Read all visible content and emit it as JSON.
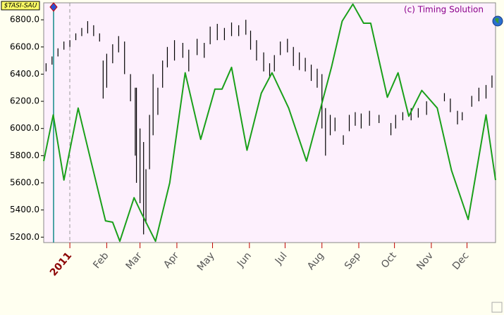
{
  "chart_data": {
    "type": "hilo",
    "title": "$TASI-SAU",
    "annotation": "(c) Timing Solution",
    "xlim": [
      -22,
      358
    ],
    "ylim": [
      5160,
      6925
    ],
    "xticks": [
      {
        "value": 0,
        "label": "2011"
      },
      {
        "value": 31,
        "label": "Feb"
      },
      {
        "value": 59,
        "label": "Mar"
      },
      {
        "value": 90,
        "label": "Apr"
      },
      {
        "value": 120,
        "label": "May"
      },
      {
        "value": 151,
        "label": "Jun"
      },
      {
        "value": 181,
        "label": "Jul"
      },
      {
        "value": 212,
        "label": "Aug"
      },
      {
        "value": 243,
        "label": "Sep"
      },
      {
        "value": 273,
        "label": "Oct"
      },
      {
        "value": 304,
        "label": "Nov"
      },
      {
        "value": 334,
        "label": "Dec"
      }
    ],
    "yticks": [
      {
        "value": 5200,
        "label": "5200.0"
      },
      {
        "value": 5400,
        "label": "5400.0"
      },
      {
        "value": 5600,
        "label": "5600.0"
      },
      {
        "value": 5800,
        "label": "5800.0"
      },
      {
        "value": 6000,
        "label": "6000.0"
      },
      {
        "value": 6200,
        "label": "6200.0"
      },
      {
        "value": 6400,
        "label": "6400.0"
      },
      {
        "value": 6600,
        "label": "6600.0"
      },
      {
        "value": 6800,
        "label": "6800.0"
      }
    ],
    "bars": {
      "color": "#000000",
      "x": [
        -20,
        -15,
        -10,
        -5,
        0,
        5,
        10,
        15,
        20,
        25,
        28,
        31,
        36,
        41,
        46,
        51,
        55,
        56,
        59,
        62,
        64,
        67,
        70,
        74,
        78,
        82,
        88,
        95,
        100,
        107,
        113,
        118,
        124,
        130,
        136,
        142,
        148,
        152,
        157,
        163,
        168,
        172,
        177,
        183,
        188,
        193,
        198,
        203,
        208,
        212,
        215,
        219,
        223,
        230,
        235,
        240,
        245,
        252,
        260,
        270,
        274,
        280,
        287,
        293,
        300,
        315,
        320,
        326,
        330,
        338,
        344,
        350,
        355
      ],
      "high": [
        6480,
        6530,
        6590,
        6640,
        6650,
        6700,
        6740,
        6790,
        6760,
        6700,
        6500,
        6550,
        6620,
        6680,
        6640,
        6400,
        6300,
        6300,
        6000,
        5900,
        5700,
        6100,
        6400,
        6300,
        6500,
        6600,
        6650,
        6630,
        6580,
        6660,
        6630,
        6750,
        6770,
        6740,
        6780,
        6760,
        6800,
        6720,
        6650,
        6560,
        6480,
        6540,
        6640,
        6660,
        6600,
        6560,
        6520,
        6470,
        6440,
        6400,
        6150,
        6100,
        6080,
        5950,
        6100,
        6120,
        6110,
        6130,
        6100,
        6040,
        6100,
        6120,
        6150,
        6150,
        6200,
        6260,
        6220,
        6130,
        6120,
        6240,
        6300,
        6320,
        6390
      ],
      "low": [
        6420,
        6470,
        6530,
        6580,
        6600,
        6650,
        6680,
        6700,
        6680,
        6640,
        6220,
        6300,
        6480,
        6560,
        6400,
        6200,
        5800,
        5600,
        5450,
        5220,
        5300,
        5700,
        5950,
        6100,
        6300,
        6450,
        6500,
        6520,
        6420,
        6540,
        6520,
        6620,
        6650,
        6650,
        6680,
        6680,
        6690,
        6580,
        6500,
        6420,
        6380,
        6420,
        6540,
        6560,
        6460,
        6430,
        6420,
        6350,
        6300,
        6000,
        5800,
        5950,
        5980,
        5880,
        5980,
        6020,
        6000,
        6020,
        6040,
        5950,
        6000,
        6060,
        6060,
        6080,
        6100,
        6200,
        6120,
        6030,
        6060,
        6160,
        6200,
        6220,
        6300
      ]
    },
    "line": {
      "color": "#1aa01a",
      "x": [
        -22,
        -14,
        -5,
        7,
        18,
        30,
        36,
        42,
        54,
        60,
        72,
        84,
        97,
        110,
        122,
        128,
        136,
        149,
        161,
        170,
        184,
        199,
        220,
        229,
        238,
        247,
        253,
        267,
        276,
        285,
        296,
        309,
        321,
        335,
        350,
        358
      ],
      "values": [
        5760,
        6100,
        5620,
        6150,
        5750,
        5320,
        5310,
        5170,
        5490,
        5380,
        5170,
        5600,
        6410,
        5920,
        6290,
        6290,
        6450,
        5840,
        6260,
        6410,
        6150,
        5760,
        6450,
        6790,
        6915,
        6775,
        6775,
        6230,
        6410,
        6090,
        6280,
        6150,
        5690,
        5330,
        6100,
        5620
      ]
    }
  }
}
